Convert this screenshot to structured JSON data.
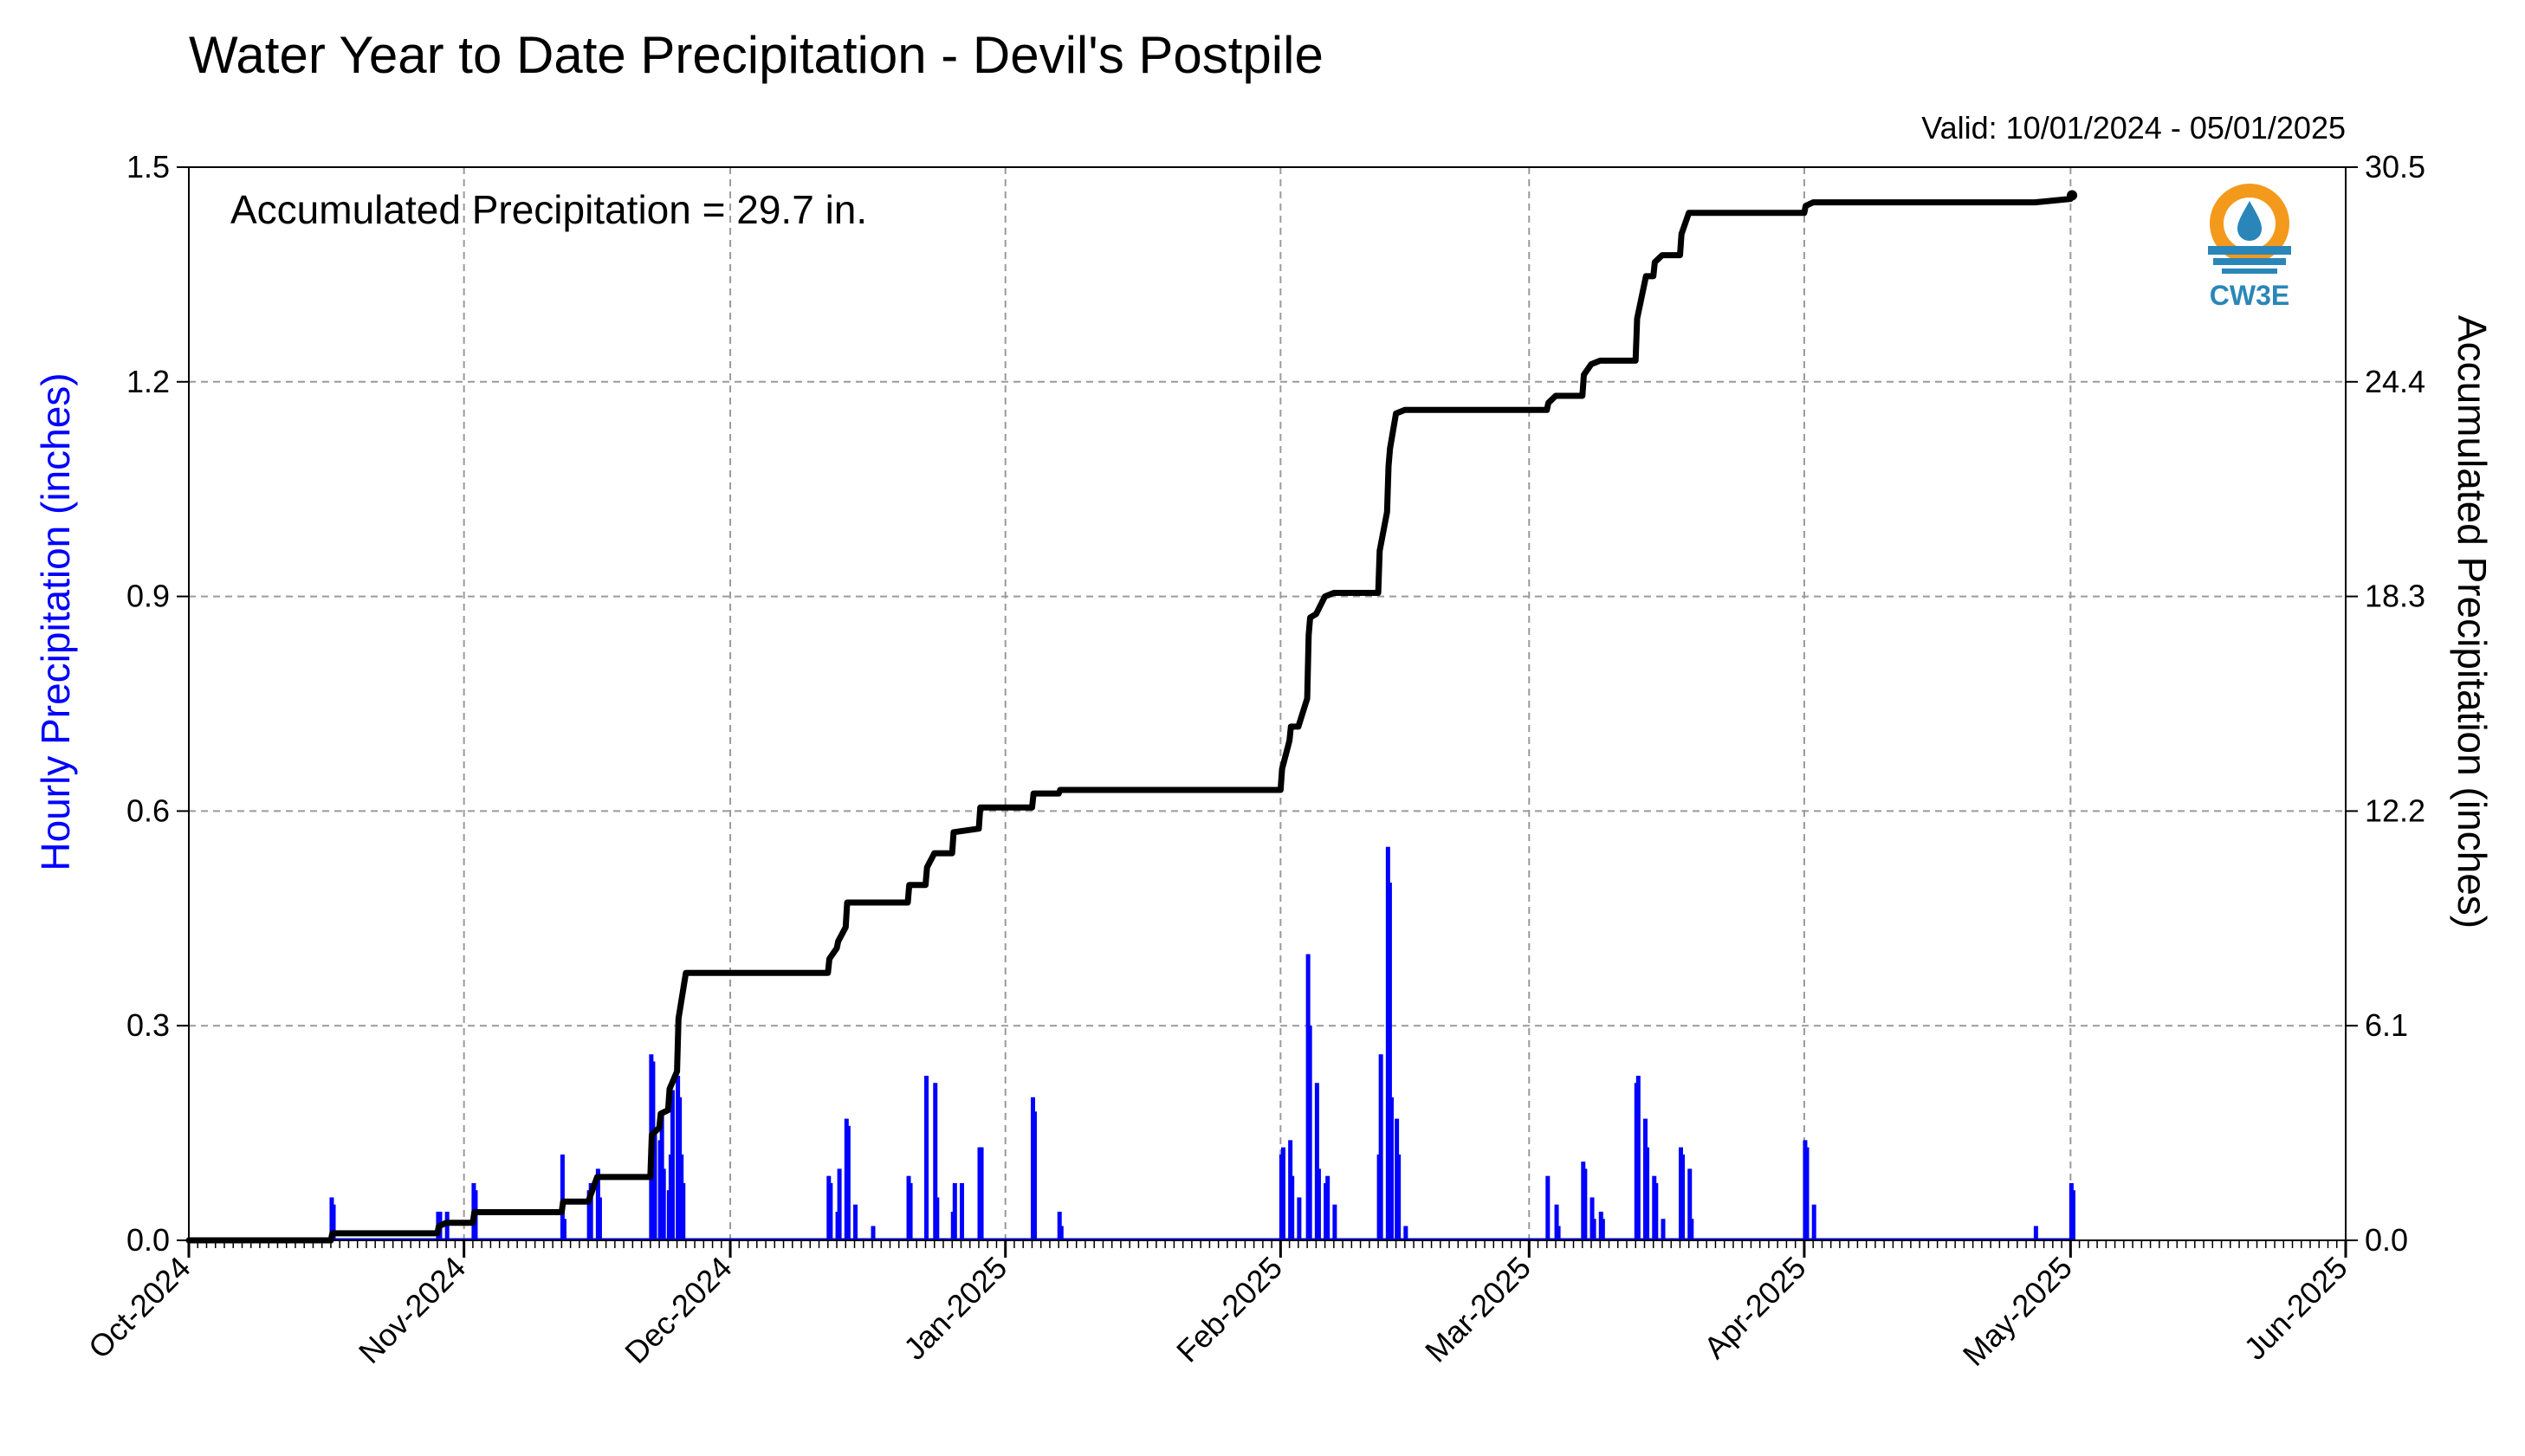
{
  "title": "Water Year to Date Precipitation - Devil's Postpile",
  "valid_text": "Valid: 10/01/2024 - 05/01/2025",
  "annotation": "Accumulated Precipitation = 29.7 in.",
  "logo": {
    "text": "CW3E",
    "icon": "cw3e-water-drop-logo"
  },
  "colors": {
    "hourly": "#0000ff",
    "accum": "#000000",
    "grid": "#9a9a9a",
    "logo_orange": "#f39a1d",
    "logo_blue": "#2a86b8"
  },
  "chart_data": {
    "type": "bar+line",
    "title": "Water Year to Date Precipitation - Devil's Postpile",
    "xlabel": "",
    "ylabel_left": "Hourly Precipitation (inches)",
    "ylabel_right": "Accumulated Precipitation (inches)",
    "xlim": [
      "2024-10-01",
      "2025-06-01"
    ],
    "ylim_left": [
      0,
      1.5
    ],
    "ylim_right": [
      0,
      30.5
    ],
    "x_ticks": [
      "Oct-2024",
      "Nov-2024",
      "Dec-2024",
      "Jan-2025",
      "Feb-2025",
      "Mar-2025",
      "Apr-2025",
      "May-2025",
      "Jun-2025"
    ],
    "x_tick_dates": [
      "2024-10-01",
      "2024-11-01",
      "2024-12-01",
      "2025-01-01",
      "2025-02-01",
      "2025-03-01",
      "2025-04-01",
      "2025-05-01",
      "2025-06-01"
    ],
    "y_ticks_left": [
      "0.0",
      "0.3",
      "0.6",
      "0.9",
      "1.2",
      "1.5"
    ],
    "y_ticks_right": [
      "0.0",
      "6.1",
      "12.2",
      "18.3",
      "24.4",
      "30.5"
    ],
    "grid": true,
    "series": [
      {
        "name": "Hourly Precipitation",
        "type": "bar",
        "color": "#0000ff",
        "points": [
          [
            "2024-10-17",
            0.06
          ],
          [
            "2024-10-17",
            0.05
          ],
          [
            "2024-10-29",
            0.04
          ],
          [
            "2024-10-29",
            0.04
          ],
          [
            "2024-10-30",
            0.04
          ],
          [
            "2024-11-02",
            0.08
          ],
          [
            "2024-11-02",
            0.07
          ],
          [
            "2024-11-12",
            0.12
          ],
          [
            "2024-11-12",
            0.03
          ],
          [
            "2024-11-15",
            0.07
          ],
          [
            "2024-11-15",
            0.08
          ],
          [
            "2024-11-16",
            0.1
          ],
          [
            "2024-11-16",
            0.06
          ],
          [
            "2024-11-22",
            0.26
          ],
          [
            "2024-11-22",
            0.25
          ],
          [
            "2024-11-22",
            0.15
          ],
          [
            "2024-11-23",
            0.14
          ],
          [
            "2024-11-23",
            0.18
          ],
          [
            "2024-11-23",
            0.1
          ],
          [
            "2024-11-24",
            0.07
          ],
          [
            "2024-11-24",
            0.12
          ],
          [
            "2024-11-24",
            0.21
          ],
          [
            "2024-11-25",
            0.23
          ],
          [
            "2024-11-25",
            0.2
          ],
          [
            "2024-11-25",
            0.12
          ],
          [
            "2024-11-25",
            0.08
          ],
          [
            "2024-12-12",
            0.09
          ],
          [
            "2024-12-12",
            0.08
          ],
          [
            "2024-12-13",
            0.04
          ],
          [
            "2024-12-13",
            0.1
          ],
          [
            "2024-12-14",
            0.17
          ],
          [
            "2024-12-14",
            0.16
          ],
          [
            "2024-12-15",
            0.05
          ],
          [
            "2024-12-17",
            0.02
          ],
          [
            "2024-12-21",
            0.09
          ],
          [
            "2024-12-21",
            0.08
          ],
          [
            "2024-12-23",
            0.23
          ],
          [
            "2024-12-24",
            0.22
          ],
          [
            "2024-12-24",
            0.06
          ],
          [
            "2024-12-26",
            0.04
          ],
          [
            "2024-12-26",
            0.08
          ],
          [
            "2024-12-27",
            0.08
          ],
          [
            "2024-12-29",
            0.13
          ],
          [
            "2024-12-29",
            0.13
          ],
          [
            "2025-01-04",
            0.2
          ],
          [
            "2025-01-04",
            0.18
          ],
          [
            "2025-01-07",
            0.04
          ],
          [
            "2025-01-07",
            0.02
          ],
          [
            "2025-02-01",
            0.12
          ],
          [
            "2025-02-01",
            0.13
          ],
          [
            "2025-02-02",
            0.14
          ],
          [
            "2025-02-02",
            0.09
          ],
          [
            "2025-02-03",
            0.06
          ],
          [
            "2025-02-04",
            0.4
          ],
          [
            "2025-02-04",
            0.3
          ],
          [
            "2025-02-05",
            0.22
          ],
          [
            "2025-02-05",
            0.1
          ],
          [
            "2025-02-06",
            0.08
          ],
          [
            "2025-02-06",
            0.09
          ],
          [
            "2025-02-07",
            0.05
          ],
          [
            "2025-02-12",
            0.12
          ],
          [
            "2025-02-12",
            0.26
          ],
          [
            "2025-02-13",
            0.55
          ],
          [
            "2025-02-13",
            0.5
          ],
          [
            "2025-02-13",
            0.2
          ],
          [
            "2025-02-14",
            0.17
          ],
          [
            "2025-02-14",
            0.12
          ],
          [
            "2025-02-15",
            0.02
          ],
          [
            "2025-03-03",
            0.09
          ],
          [
            "2025-03-04",
            0.05
          ],
          [
            "2025-03-04",
            0.02
          ],
          [
            "2025-03-07",
            0.11
          ],
          [
            "2025-03-07",
            0.1
          ],
          [
            "2025-03-08",
            0.06
          ],
          [
            "2025-03-08",
            0.03
          ],
          [
            "2025-03-09",
            0.04
          ],
          [
            "2025-03-09",
            0.03
          ],
          [
            "2025-03-13",
            0.22
          ],
          [
            "2025-03-13",
            0.23
          ],
          [
            "2025-03-14",
            0.17
          ],
          [
            "2025-03-14",
            0.13
          ],
          [
            "2025-03-15",
            0.09
          ],
          [
            "2025-03-15",
            0.08
          ],
          [
            "2025-03-16",
            0.03
          ],
          [
            "2025-03-18",
            0.13
          ],
          [
            "2025-03-18",
            0.12
          ],
          [
            "2025-03-19",
            0.1
          ],
          [
            "2025-03-19",
            0.03
          ],
          [
            "2025-04-01",
            0.14
          ],
          [
            "2025-04-01",
            0.13
          ],
          [
            "2025-04-02",
            0.05
          ],
          [
            "2025-04-27",
            0.02
          ],
          [
            "2025-05-01",
            0.08
          ],
          [
            "2025-05-01",
            0.07
          ]
        ]
      },
      {
        "name": "Accumulated Precipitation",
        "type": "line",
        "color": "#000000",
        "points": [
          [
            "2024-10-01",
            0.0
          ],
          [
            "2024-10-17",
            0.0
          ],
          [
            "2024-10-17",
            0.2
          ],
          [
            "2024-10-29",
            0.2
          ],
          [
            "2024-10-29",
            0.4
          ],
          [
            "2024-10-30",
            0.5
          ],
          [
            "2024-11-02",
            0.5
          ],
          [
            "2024-11-02",
            0.8
          ],
          [
            "2024-11-12",
            0.8
          ],
          [
            "2024-11-12",
            1.1
          ],
          [
            "2024-11-15",
            1.1
          ],
          [
            "2024-11-16",
            1.8
          ],
          [
            "2024-11-22",
            1.8
          ],
          [
            "2024-11-22",
            3.0
          ],
          [
            "2024-11-23",
            3.2
          ],
          [
            "2024-11-23",
            3.6
          ],
          [
            "2024-11-24",
            3.7
          ],
          [
            "2024-11-24",
            4.3
          ],
          [
            "2024-11-25",
            4.8
          ],
          [
            "2024-11-25",
            6.3
          ],
          [
            "2024-11-26",
            7.6
          ],
          [
            "2024-12-12",
            7.6
          ],
          [
            "2024-12-12",
            8.0
          ],
          [
            "2024-12-13",
            8.3
          ],
          [
            "2024-12-13",
            8.5
          ],
          [
            "2024-12-14",
            8.9
          ],
          [
            "2024-12-14",
            9.6
          ],
          [
            "2024-12-15",
            9.6
          ],
          [
            "2024-12-21",
            9.6
          ],
          [
            "2024-12-21",
            10.1
          ],
          [
            "2024-12-23",
            10.1
          ],
          [
            "2024-12-23",
            10.6
          ],
          [
            "2024-12-24",
            11.0
          ],
          [
            "2024-12-26",
            11.0
          ],
          [
            "2024-12-26",
            11.6
          ],
          [
            "2024-12-29",
            11.7
          ],
          [
            "2024-12-29",
            12.3
          ],
          [
            "2025-01-04",
            12.3
          ],
          [
            "2025-01-04",
            12.7
          ],
          [
            "2025-01-07",
            12.7
          ],
          [
            "2025-01-07",
            12.8
          ],
          [
            "2025-02-01",
            12.8
          ],
          [
            "2025-02-01",
            13.4
          ],
          [
            "2025-02-02",
            14.2
          ],
          [
            "2025-02-02",
            14.6
          ],
          [
            "2025-02-03",
            14.6
          ],
          [
            "2025-02-04",
            15.4
          ],
          [
            "2025-02-04",
            17.2
          ],
          [
            "2025-02-04",
            17.7
          ],
          [
            "2025-02-05",
            17.8
          ],
          [
            "2025-02-06",
            18.3
          ],
          [
            "2025-02-07",
            18.4
          ],
          [
            "2025-02-12",
            18.4
          ],
          [
            "2025-02-12",
            19.6
          ],
          [
            "2025-02-13",
            20.7
          ],
          [
            "2025-02-13",
            22.0
          ],
          [
            "2025-02-13",
            22.5
          ],
          [
            "2025-02-14",
            23.5
          ],
          [
            "2025-02-15",
            23.6
          ],
          [
            "2025-03-03",
            23.6
          ],
          [
            "2025-03-03",
            23.8
          ],
          [
            "2025-03-04",
            24.0
          ],
          [
            "2025-03-07",
            24.0
          ],
          [
            "2025-03-07",
            24.6
          ],
          [
            "2025-03-08",
            24.9
          ],
          [
            "2025-03-09",
            25.0
          ],
          [
            "2025-03-13",
            25.0
          ],
          [
            "2025-03-13",
            26.2
          ],
          [
            "2025-03-14",
            27.2
          ],
          [
            "2025-03-14",
            27.4
          ],
          [
            "2025-03-15",
            27.4
          ],
          [
            "2025-03-15",
            27.8
          ],
          [
            "2025-03-16",
            28.0
          ],
          [
            "2025-03-18",
            28.0
          ],
          [
            "2025-03-18",
            28.6
          ],
          [
            "2025-03-19",
            29.2
          ],
          [
            "2025-04-01",
            29.2
          ],
          [
            "2025-04-01",
            29.4
          ],
          [
            "2025-04-02",
            29.5
          ],
          [
            "2025-04-27",
            29.5
          ],
          [
            "2025-05-01",
            29.6
          ],
          [
            "2025-05-01",
            29.7
          ]
        ]
      }
    ]
  }
}
